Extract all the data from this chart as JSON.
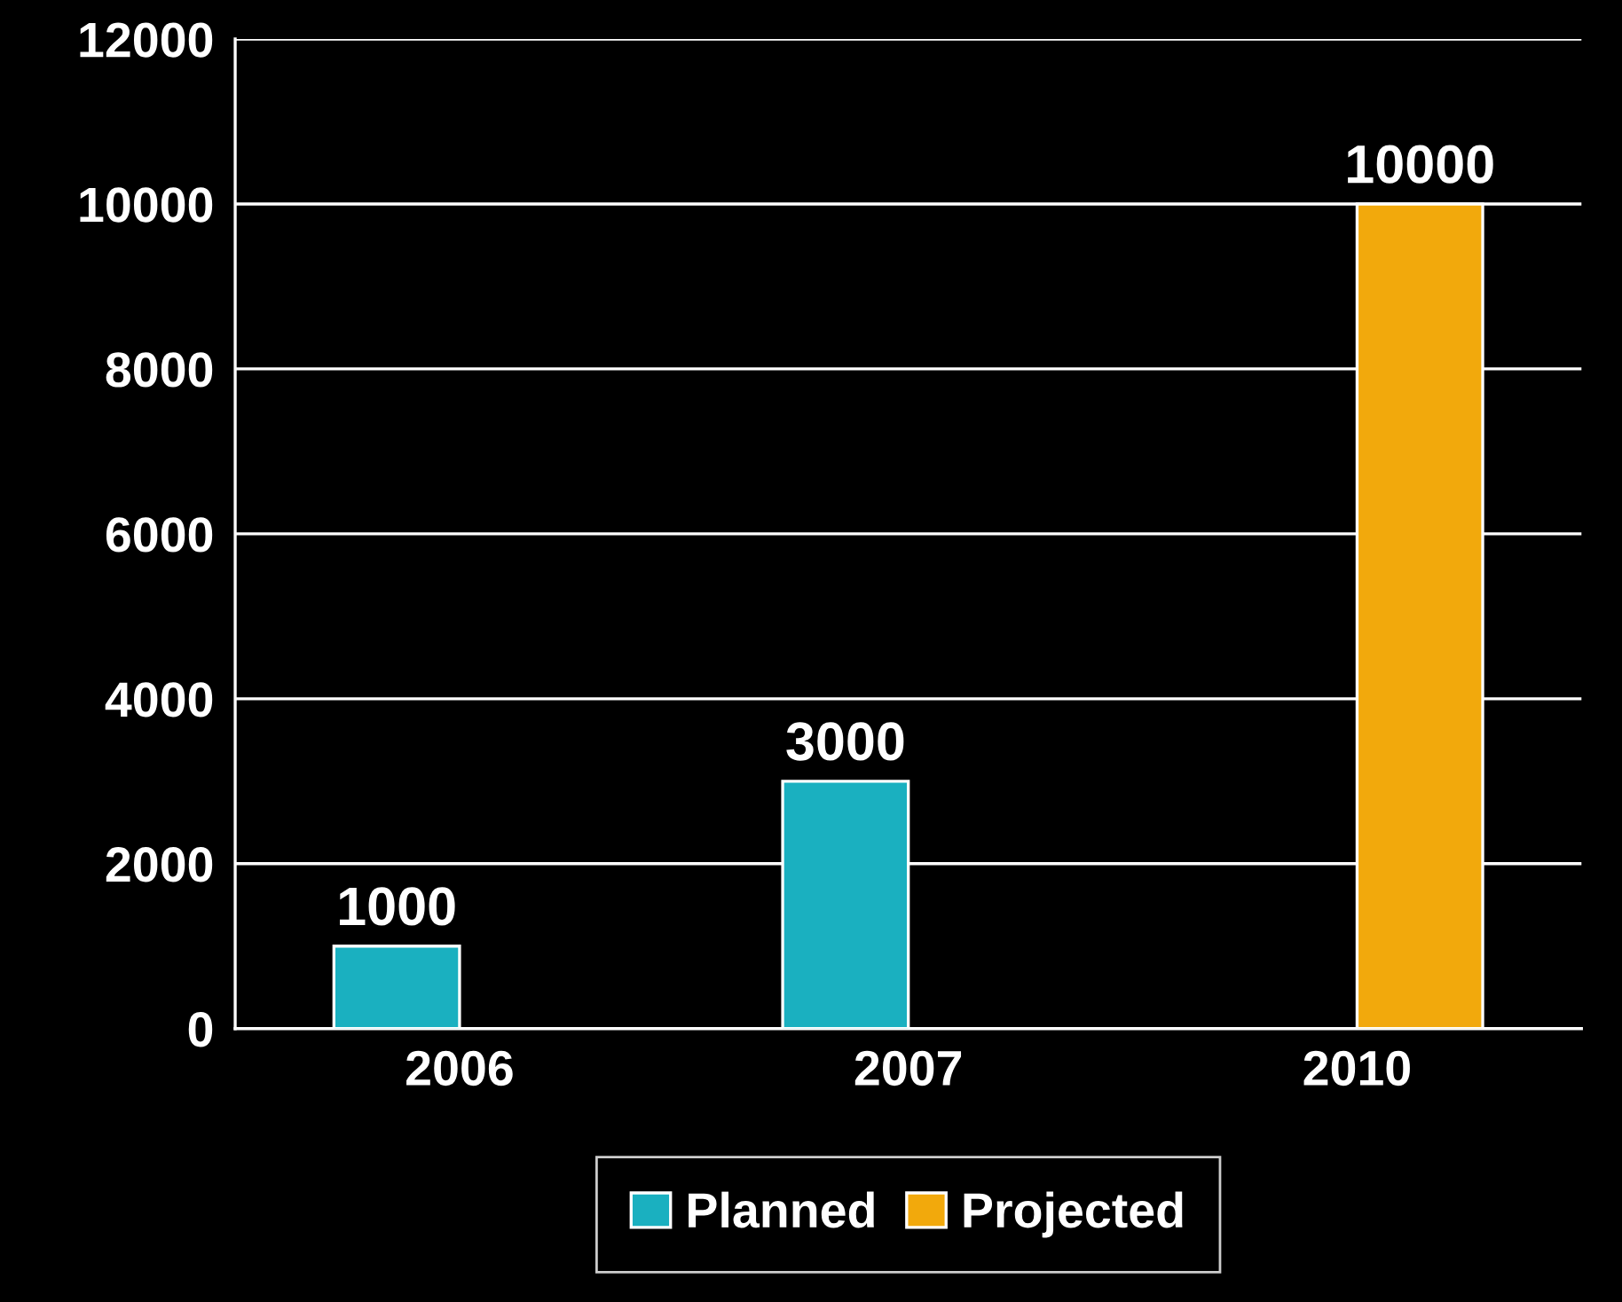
{
  "chart_data": {
    "type": "bar",
    "categories": [
      "2006",
      "2007",
      "2010"
    ],
    "series": [
      {
        "name": "Planned",
        "color": "#1ab0c0",
        "values": [
          1000,
          3000,
          null
        ]
      },
      {
        "name": "Projected",
        "color": "#f2a90c",
        "values": [
          null,
          null,
          10000
        ]
      }
    ],
    "ylim": [
      0,
      12000
    ],
    "yticks": [
      0,
      2000,
      4000,
      6000,
      8000,
      10000,
      12000
    ],
    "grid": "y",
    "legend": "bottom",
    "data_labels": true
  }
}
